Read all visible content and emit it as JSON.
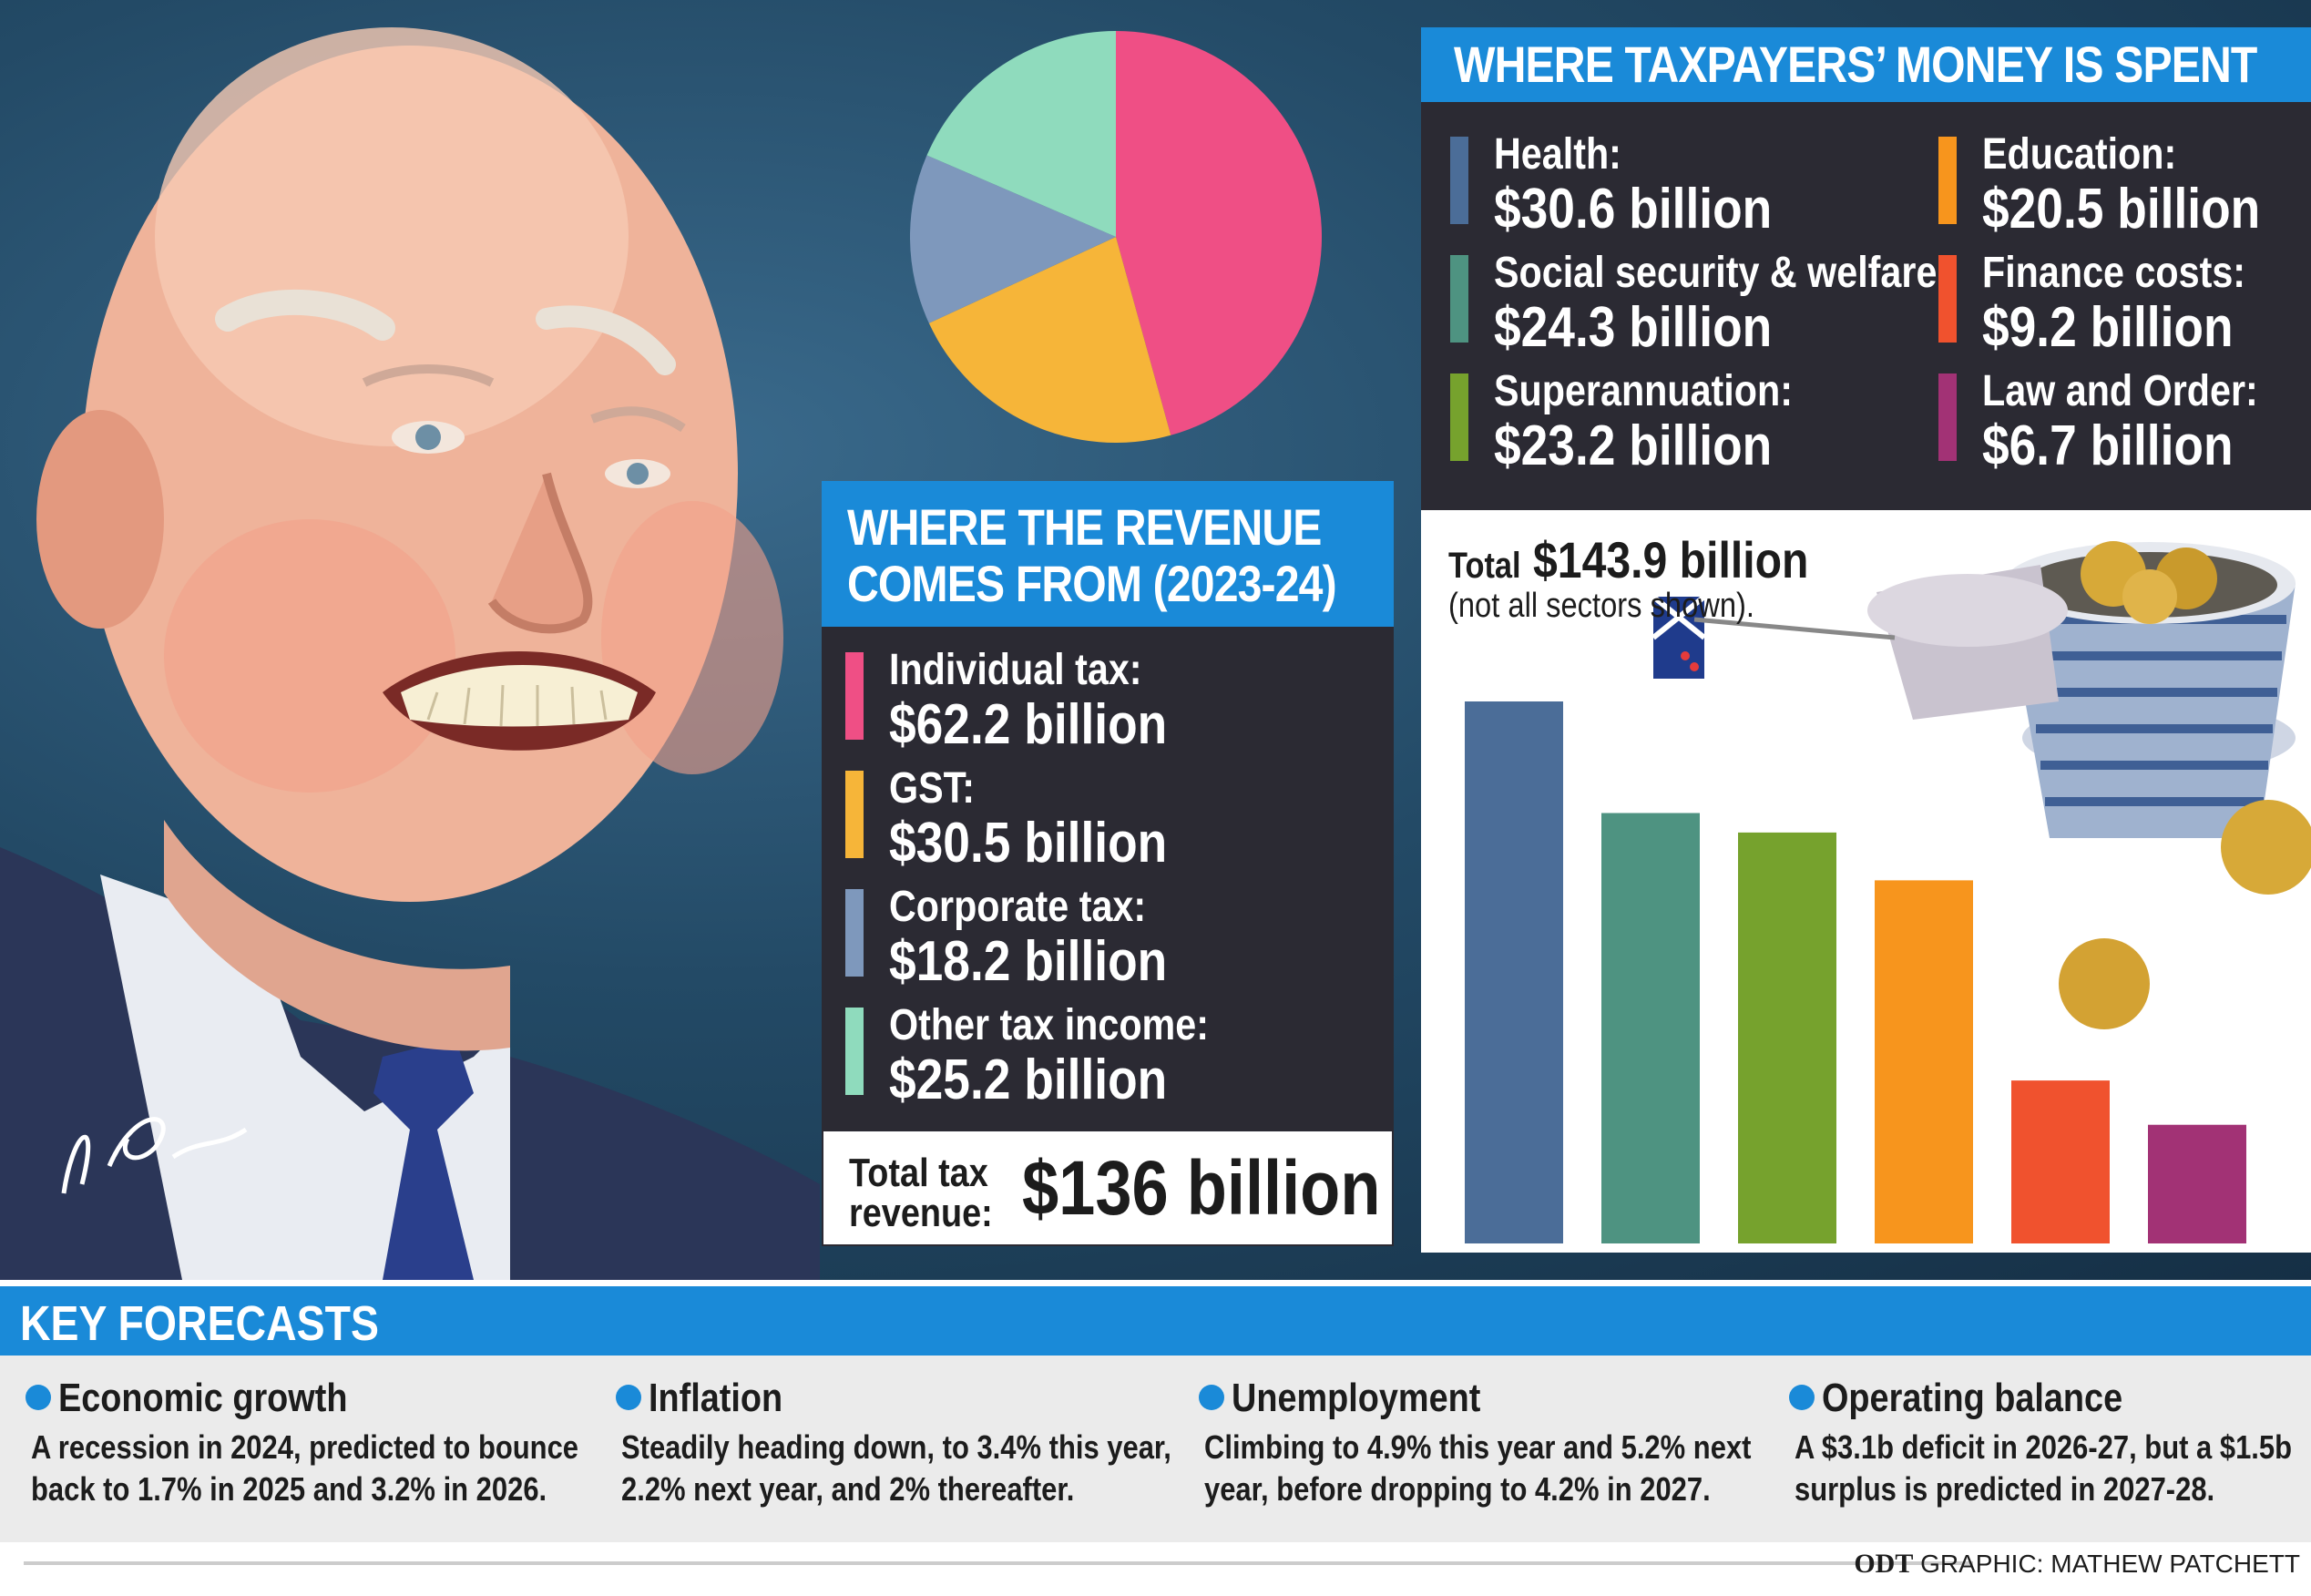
{
  "revenue": {
    "header": [
      "WHERE THE REVENUE",
      "COMES FROM (2023-24)"
    ],
    "items": [
      {
        "label": "Individual tax:",
        "value": "$62.2 billion",
        "color": "#ef4f85"
      },
      {
        "label": "GST:",
        "value": "$30.5 billion",
        "color": "#f6b539"
      },
      {
        "label": "Corporate tax:",
        "value": "$18.2 billion",
        "color": "#7e98bc"
      },
      {
        "label": "Other tax income:",
        "value": "$25.2 billion",
        "color": "#8fdbbd"
      }
    ],
    "total_label": [
      "Total tax",
      "revenue:"
    ],
    "total_value": "$136 billion"
  },
  "spending": {
    "header": "WHERE TAXPAYERS’ MONEY IS SPENT",
    "items": [
      {
        "label": "Health:",
        "value": "$30.6 billion",
        "color": "#4b6d98"
      },
      {
        "label": "Education:",
        "value": "$20.5 billion",
        "color": "#f7951d"
      },
      {
        "label": "Social security & welfare:",
        "value": "$24.3 billion",
        "color": "#4e9381"
      },
      {
        "label": "Finance costs:",
        "value": "$9.2 billion",
        "color": "#f0522e"
      },
      {
        "label": "Superannuation:",
        "value": "$23.2 billion",
        "color": "#76a22d"
      },
      {
        "label": "Law and Order:",
        "value": "$6.7 billion",
        "color": "#a23275"
      }
    ],
    "total_prefix": "Total",
    "total_value": "$143.9 billion",
    "total_note": "(not all sectors shown)."
  },
  "chart_data": [
    {
      "type": "pie",
      "categories": [
        "Individual tax",
        "GST",
        "Corporate tax",
        "Other tax income"
      ],
      "values": [
        62.2,
        30.5,
        18.2,
        25.2
      ],
      "colors": [
        "#ef4f85",
        "#f6b539",
        "#7e98bc",
        "#8fdbbd"
      ],
      "title": "WHERE THE REVENUE COMES FROM (2023-24)"
    },
    {
      "type": "bar",
      "categories": [
        "Health",
        "Social security & welfare",
        "Superannuation",
        "Education",
        "Finance costs",
        "Law and Order"
      ],
      "values": [
        30.6,
        24.3,
        23.2,
        20.5,
        9.2,
        6.7
      ],
      "colors": [
        "#4b6d98",
        "#4e9381",
        "#76a22d",
        "#f7951d",
        "#f0522e",
        "#a23275"
      ],
      "title": "WHERE TAXPAYERS’ MONEY IS SPENT",
      "ylim": [
        0,
        30.6
      ],
      "grid": false
    }
  ],
  "forecasts": {
    "title": "KEY FORECASTS",
    "items": [
      {
        "title": "Economic growth",
        "text": "A recession in 2024, predicted to bounce back to 1.7% in 2025 and 3.2% in 2026."
      },
      {
        "title": "Inflation",
        "text": "Steadily heading down, to 3.4% this year, 2.2% next year, and 2% thereafter."
      },
      {
        "title": "Unemployment",
        "text": "Climbing to 4.9% this year and 5.2% next year, before dropping to 4.2% in 2027."
      },
      {
        "title": "Operating balance",
        "text": "A $3.1b deficit in 2026-27, but a $1.5b surplus is predicted in 2027-28."
      }
    ]
  },
  "credit": {
    "brand": "ODT",
    "text": "GRAPHIC: MATHEW PATCHETT"
  }
}
